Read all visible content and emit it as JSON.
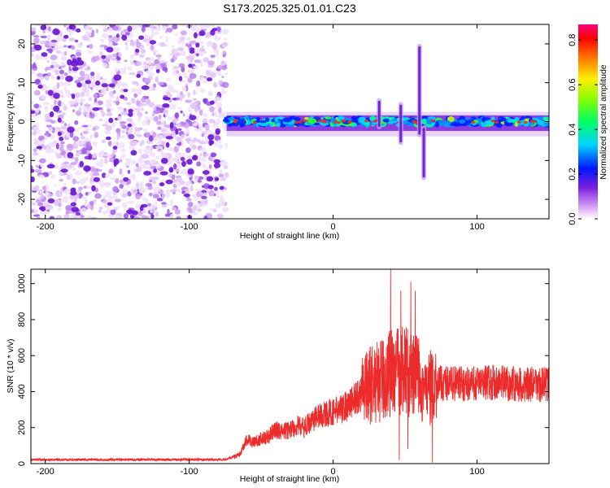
{
  "title": "S173.2025.325.01.01.C23",
  "colors": {
    "snr_line": "#ee2b2b",
    "axis": "#000000"
  },
  "chart_data": [
    {
      "type": "heatmap",
      "title": "S173.2025.325.01.01.C23",
      "xlabel": "Height of straight line (km)",
      "ylabel": "Frequency (Hz)",
      "xlim": [
        -210,
        150
      ],
      "ylim": [
        -25,
        25
      ],
      "xticks": [
        -200,
        -100,
        0,
        100
      ],
      "yticks": [
        -20,
        -10,
        0,
        10,
        20
      ],
      "colorbar": {
        "label": "Normalized spectral amplitude",
        "range": [
          0.0,
          0.87
        ],
        "ticks": [
          "0.0",
          "0.2",
          "0.4",
          "0.6",
          "0.8"
        ],
        "tick_values": [
          0.0,
          0.2,
          0.4,
          0.6,
          0.8
        ]
      },
      "noise_region_x": [
        -210,
        -74
      ],
      "signal_band": {
        "x_range": [
          -74,
          150
        ],
        "freq_center_hz": 0,
        "disturbances": [
          {
            "x": 32,
            "freq_range": [
              -2,
              6
            ]
          },
          {
            "x": 47,
            "freq_range": [
              -6,
              5
            ]
          },
          {
            "x": 60,
            "freq_range": [
              -4,
              20
            ]
          },
          {
            "x": 63,
            "freq_range": [
              -15,
              -1
            ]
          }
        ]
      }
    },
    {
      "type": "line",
      "xlabel": "Height of straight line (km)",
      "ylabel": "SNR (10 * v/v)",
      "xlim": [
        -210,
        150
      ],
      "ylim": [
        0,
        1080
      ],
      "xticks": [
        -200,
        -100,
        0,
        100
      ],
      "yticks": [
        0,
        200,
        400,
        600,
        800,
        1000
      ],
      "series": [
        {
          "name": "SNR",
          "x": [
            -210,
            -180,
            -150,
            -120,
            -90,
            -75,
            -65,
            -60,
            -55,
            -50,
            -45,
            -40,
            -35,
            -30,
            -25,
            -20,
            -15,
            -10,
            -5,
            0,
            5,
            10,
            15,
            20,
            25,
            30,
            35,
            40,
            45,
            50,
            55,
            60,
            65,
            70,
            75,
            80,
            90,
            100,
            110,
            120,
            130,
            140,
            150
          ],
          "values": [
            22,
            22,
            22,
            22,
            22,
            22,
            50,
            130,
            120,
            140,
            150,
            190,
            175,
            190,
            210,
            200,
            240,
            265,
            275,
            290,
            300,
            325,
            360,
            390,
            430,
            450,
            460,
            520,
            510,
            520,
            480,
            490,
            390,
            450,
            445,
            450,
            440,
            445,
            455,
            445,
            440,
            440,
            440
          ],
          "peaks": [
            {
              "x": 40,
              "value": 1080
            },
            {
              "x": 47,
              "value": 960
            },
            {
              "x": 54,
              "value": 1010
            },
            {
              "x": 57,
              "value": 960
            }
          ],
          "dips": [
            {
              "x": 46,
              "value": 20
            },
            {
              "x": 52,
              "value": 80
            },
            {
              "x": 69,
              "value": 5
            }
          ]
        }
      ]
    }
  ]
}
